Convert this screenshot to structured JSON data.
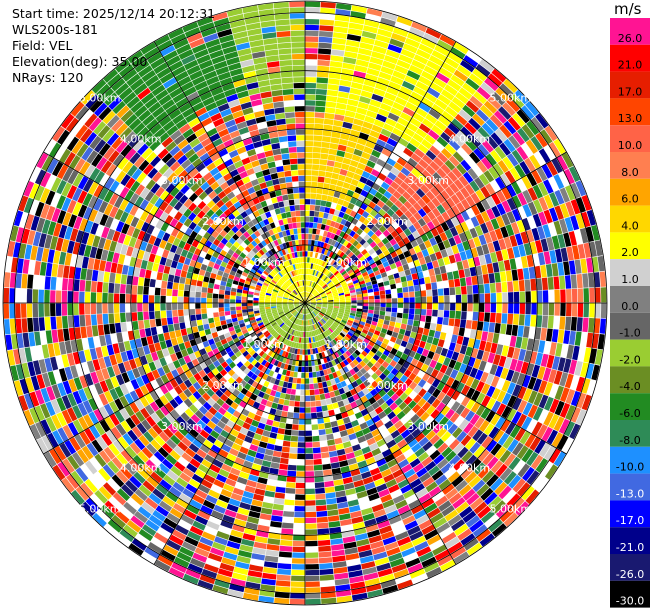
{
  "header": {
    "start_time": "Start time: 2025/12/14 20:12:31",
    "instrument": "WLS200s-181",
    "field": "Field: VEL",
    "elevation": "Elevation(deg): 35.00",
    "nrays": "NRays: 120"
  },
  "colorbar": {
    "unit": "m/s",
    "levels": [
      {
        "label": "26.0",
        "color": "#ff1493"
      },
      {
        "label": "21.0",
        "color": "#ff0000"
      },
      {
        "label": "17.0",
        "color": "#e61e00"
      },
      {
        "label": "13.0",
        "color": "#ff4500"
      },
      {
        "label": "10.0",
        "color": "#ff6347"
      },
      {
        "label": "8.0",
        "color": "#ff7f50"
      },
      {
        "label": "6.0",
        "color": "#ffa500"
      },
      {
        "label": "4.0",
        "color": "#ffd700"
      },
      {
        "label": "2.0",
        "color": "#ffff00"
      },
      {
        "label": "1.0",
        "color": "#d0d0d0"
      },
      {
        "label": "0.0",
        "color": "#808080"
      },
      {
        "label": "-1.0",
        "color": "#666666"
      },
      {
        "label": "-2.0",
        "color": "#9acd32"
      },
      {
        "label": "-4.0",
        "color": "#6b8e23"
      },
      {
        "label": "-6.0",
        "color": "#228b22"
      },
      {
        "label": "-8.0",
        "color": "#2e8b57"
      },
      {
        "label": "-10.0",
        "color": "#1e90ff"
      },
      {
        "label": "-13.0",
        "color": "#4169e1"
      },
      {
        "label": "-17.0",
        "color": "#0000ff"
      },
      {
        "label": "-21.0",
        "color": "#00008b"
      },
      {
        "label": "-26.0",
        "color": "#191970"
      },
      {
        "label": "-30.0",
        "color": "#000000"
      }
    ]
  },
  "chart_data": {
    "type": "heatmap",
    "projection": "polar-ppi",
    "field": "VEL",
    "elevation_deg": 35.0,
    "n_rays": 120,
    "unit": "m/s",
    "range_rings_km": [
      1,
      2,
      3,
      4,
      5
    ],
    "range_ring_labels": [
      "1.00km",
      "2.00km",
      "3.00km",
      "4.00km",
      "5.00km"
    ],
    "max_range_km": 5.2,
    "grid": true,
    "sectors": [
      {
        "azimuth_deg": [
          315,
          345
        ],
        "range_km": [
          3.7,
          5.2
        ],
        "value": -6.0
      },
      {
        "azimuth_deg": [
          345,
          360
        ],
        "range_km": [
          3.7,
          5.2
        ],
        "value": -2.0
      },
      {
        "azimuth_deg": [
          5,
          40
        ],
        "range_km": [
          3.3,
          5.0
        ],
        "value": 2.0
      },
      {
        "azimuth_deg": [
          0,
          25
        ],
        "range_km": [
          1.8,
          3.3
        ],
        "value": 4.0
      },
      {
        "azimuth_deg": [
          35,
          60
        ],
        "range_km": [
          2.3,
          3.5
        ],
        "value": 10.0
      },
      {
        "azimuth_deg": [
          270,
          360
        ],
        "range_km": [
          0,
          0.8
        ],
        "value": 2.0
      },
      {
        "azimuth_deg": [
          0,
          90
        ],
        "range_km": [
          0,
          0.8
        ],
        "value": 2.0
      },
      {
        "azimuth_deg": [
          180,
          270
        ],
        "range_km": [
          0,
          0.8
        ],
        "value": -2.0
      },
      {
        "azimuth_deg": [
          90,
          180
        ],
        "range_km": [
          0,
          0.8
        ],
        "value": -2.0
      }
    ],
    "background": "noise"
  }
}
